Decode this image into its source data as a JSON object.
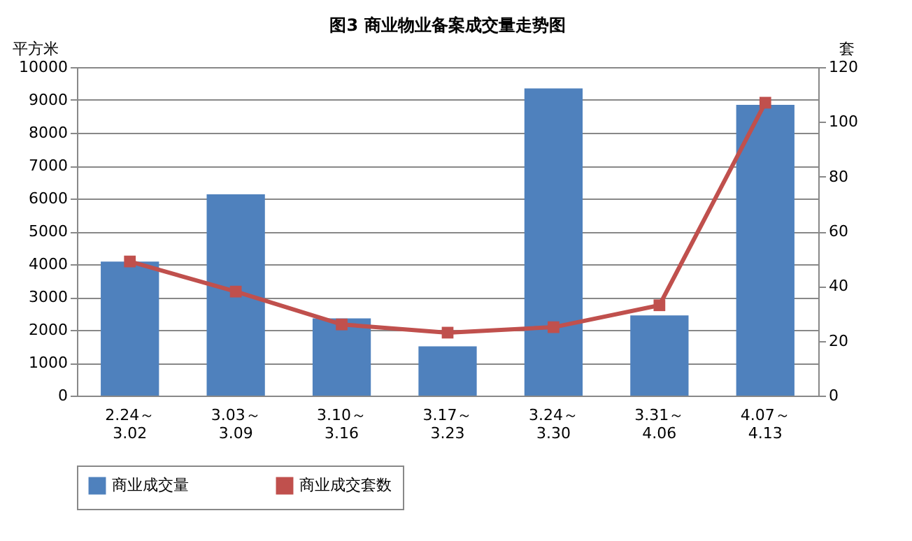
{
  "chart_data": {
    "type": "bar",
    "title": "图3   商业物业备案成交量走势图",
    "categories": [
      "2.24～\n3.02",
      "3.03～\n3.09",
      "3.10～\n3.16",
      "3.17～\n3.23",
      "3.24～\n3.30",
      "3.31～\n4.06",
      "4.07～\n4.13"
    ],
    "series": [
      {
        "name": "商业成交量",
        "color": "#4f81bd",
        "values": [
          4080,
          6130,
          2350,
          1500,
          9350,
          2440,
          8850
        ]
      },
      {
        "name": "商业成交套数",
        "color": "#c0504d",
        "type": "line",
        "axis": "y2",
        "marker": "square",
        "values": [
          49,
          38,
          26,
          23,
          25,
          33,
          107
        ]
      }
    ],
    "ylabel": "平方米",
    "y2label": "套",
    "ylim": [
      0,
      10000
    ],
    "yticks": [
      0,
      1000,
      2000,
      3000,
      4000,
      5000,
      6000,
      7000,
      8000,
      9000,
      10000
    ],
    "y2lim": [
      0,
      120
    ],
    "y2ticks": [
      0,
      20,
      40,
      60,
      80,
      100,
      120
    ],
    "grid": "y",
    "legend": "bottom"
  }
}
